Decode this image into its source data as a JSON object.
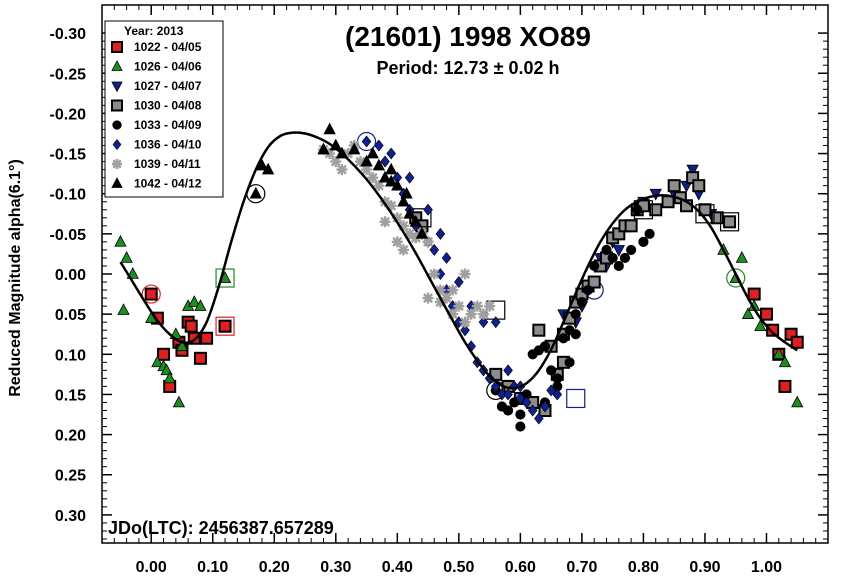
{
  "chart_data": {
    "type": "scatter",
    "title": "(21601) 1998 XO89",
    "subtitle": "Period: 12.73 ± 0.02 h",
    "annotation": "JDo(LTC): 2456387.657289",
    "ylabel": "Reduced Magnitude alpha(6.1°)",
    "xlabel": "",
    "xlim": [
      -0.08,
      1.1
    ],
    "ylim": [
      0.335,
      -0.335
    ],
    "y_inverted": true,
    "x_ticks": [
      "0.00",
      "0.10",
      "0.20",
      "0.30",
      "0.40",
      "0.50",
      "0.60",
      "0.70",
      "0.80",
      "0.90",
      "1.00"
    ],
    "x_tick_values": [
      0,
      0.1,
      0.2,
      0.3,
      0.4,
      0.5,
      0.6,
      0.7,
      0.8,
      0.9,
      1.0
    ],
    "y_ticks": [
      "-0.30",
      "-0.25",
      "-0.20",
      "-0.15",
      "-0.10",
      "-0.05",
      "0.00",
      "0.05",
      "0.10",
      "0.15",
      "0.20",
      "0.25",
      "0.30"
    ],
    "y_tick_values": [
      -0.3,
      -0.25,
      -0.2,
      -0.15,
      -0.1,
      -0.05,
      0.0,
      0.05,
      0.1,
      0.15,
      0.2,
      0.25,
      0.3
    ],
    "legend_title": "Year: 2013",
    "legend_position": "top-left",
    "series": [
      {
        "name": "1022 - 04/05",
        "marker": "square",
        "fill": "#e02020",
        "stroke": "#000000",
        "points": [
          [
            0.0,
            0.025
          ],
          [
            0.01,
            0.055
          ],
          [
            0.02,
            0.1
          ],
          [
            0.03,
            0.14
          ],
          [
            0.045,
            0.085
          ],
          [
            0.05,
            0.095
          ],
          [
            0.06,
            0.06
          ],
          [
            0.065,
            0.065
          ],
          [
            0.07,
            0.08
          ],
          [
            0.08,
            0.105
          ],
          [
            0.09,
            0.08
          ],
          [
            0.12,
            0.065
          ],
          [
            0.98,
            0.025
          ],
          [
            1.0,
            0.05
          ],
          [
            1.01,
            0.07
          ],
          [
            1.02,
            0.1
          ],
          [
            1.03,
            0.14
          ],
          [
            1.04,
            0.075
          ],
          [
            1.05,
            0.085
          ]
        ],
        "circled": [
          [
            0.0,
            0.025
          ]
        ],
        "boxed": [
          [
            0.12,
            0.065
          ]
        ]
      },
      {
        "name": "1026 - 04/06",
        "marker": "triangle-up",
        "fill": "#1e8c1e",
        "stroke": "#000000",
        "points": [
          [
            -0.05,
            -0.04
          ],
          [
            -0.04,
            -0.02
          ],
          [
            -0.03,
            0.0
          ],
          [
            -0.045,
            0.045
          ],
          [
            0.0,
            0.055
          ],
          [
            0.01,
            0.11
          ],
          [
            0.02,
            0.115
          ],
          [
            0.025,
            0.12
          ],
          [
            0.03,
            0.13
          ],
          [
            0.04,
            0.075
          ],
          [
            0.045,
            0.16
          ],
          [
            0.05,
            0.09
          ],
          [
            0.06,
            0.04
          ],
          [
            0.07,
            0.035
          ],
          [
            0.08,
            0.04
          ],
          [
            0.12,
            0.005
          ],
          [
            0.93,
            -0.03
          ],
          [
            0.95,
            0.005
          ],
          [
            0.96,
            -0.02
          ],
          [
            0.97,
            0.05
          ],
          [
            0.98,
            0.04
          ],
          [
            0.99,
            0.065
          ],
          [
            1.02,
            0.1
          ],
          [
            1.03,
            0.11
          ],
          [
            1.05,
            0.16
          ]
        ],
        "circled": [
          [
            0.95,
            0.005
          ]
        ],
        "boxed": [
          [
            0.12,
            0.005
          ]
        ]
      },
      {
        "name": "1027 - 04/07",
        "marker": "triangle-down",
        "fill": "#10208c",
        "stroke": "#000000",
        "points": [
          [
            0.69,
            0.06
          ],
          [
            0.7,
            0.04
          ],
          [
            0.71,
            0.02
          ],
          [
            0.72,
            0.01
          ],
          [
            0.73,
            -0.02
          ],
          [
            0.75,
            -0.04
          ],
          [
            0.77,
            -0.06
          ],
          [
            0.8,
            -0.09
          ],
          [
            0.82,
            -0.1
          ],
          [
            0.85,
            -0.1
          ],
          [
            0.87,
            -0.11
          ],
          [
            0.88,
            -0.13
          ],
          [
            0.89,
            -0.1
          ],
          [
            0.9,
            -0.08
          ],
          [
            0.91,
            -0.075
          ],
          [
            0.67,
            0.05
          ],
          [
            0.74,
            -0.01
          ],
          [
            0.76,
            -0.03
          ]
        ],
        "circled": [
          [
            0.72,
            0.02
          ]
        ],
        "boxed": []
      },
      {
        "name": "1030 - 04/08",
        "marker": "square",
        "fill": "#8c8c8c",
        "stroke": "#000000",
        "points": [
          [
            0.56,
            0.125
          ],
          [
            0.58,
            0.14
          ],
          [
            0.6,
            0.155
          ],
          [
            0.62,
            0.16
          ],
          [
            0.64,
            0.17
          ],
          [
            0.66,
            0.125
          ],
          [
            0.67,
            0.11
          ],
          [
            0.68,
            0.055
          ],
          [
            0.69,
            0.035
          ],
          [
            0.7,
            0.025
          ],
          [
            0.71,
            0.015
          ],
          [
            0.72,
            0.01
          ],
          [
            0.73,
            -0.01
          ],
          [
            0.74,
            -0.02
          ],
          [
            0.75,
            -0.045
          ],
          [
            0.76,
            -0.05
          ],
          [
            0.77,
            -0.06
          ],
          [
            0.78,
            -0.06
          ],
          [
            0.79,
            -0.08
          ],
          [
            0.8,
            -0.085
          ],
          [
            0.82,
            -0.08
          ],
          [
            0.84,
            -0.09
          ],
          [
            0.85,
            -0.11
          ],
          [
            0.86,
            -0.095
          ],
          [
            0.87,
            -0.085
          ],
          [
            0.88,
            -0.12
          ],
          [
            0.89,
            -0.11
          ],
          [
            0.9,
            -0.08
          ],
          [
            0.92,
            -0.07
          ],
          [
            0.94,
            -0.065
          ],
          [
            0.43,
            -0.07
          ],
          [
            0.44,
            -0.06
          ],
          [
            0.63,
            0.07
          ],
          [
            0.65,
            0.09
          ],
          [
            0.67,
            0.075
          ]
        ],
        "circled": [],
        "boxed": [
          [
            0.56,
            0.045
          ],
          [
            0.8,
            -0.08
          ],
          [
            0.9,
            -0.075
          ],
          [
            0.94,
            -0.065
          ],
          [
            0.44,
            -0.07
          ]
        ]
      },
      {
        "name": "1033 - 04/09",
        "marker": "circle",
        "fill": "#000000",
        "stroke": "#000000",
        "points": [
          [
            0.56,
            0.145
          ],
          [
            0.57,
            0.165
          ],
          [
            0.58,
            0.17
          ],
          [
            0.59,
            0.16
          ],
          [
            0.6,
            0.175
          ],
          [
            0.61,
            0.15
          ],
          [
            0.62,
            0.1
          ],
          [
            0.63,
            0.095
          ],
          [
            0.64,
            0.09
          ],
          [
            0.65,
            0.12
          ],
          [
            0.66,
            0.13
          ],
          [
            0.67,
            0.08
          ],
          [
            0.68,
            0.07
          ],
          [
            0.69,
            0.05
          ],
          [
            0.7,
            0.035
          ],
          [
            0.71,
            0.02
          ],
          [
            0.72,
            -0.01
          ],
          [
            0.74,
            -0.03
          ],
          [
            0.75,
            -0.02
          ],
          [
            0.76,
            -0.01
          ],
          [
            0.77,
            -0.02
          ],
          [
            0.78,
            -0.03
          ],
          [
            0.79,
            -0.08
          ],
          [
            0.8,
            -0.04
          ],
          [
            0.81,
            -0.05
          ],
          [
            0.6,
            0.19
          ],
          [
            0.64,
            0.16
          ],
          [
            0.66,
            0.14
          ],
          [
            0.68,
            0.11
          ],
          [
            0.69,
            0.075
          ]
        ],
        "circled": [
          [
            0.56,
            0.145
          ]
        ],
        "boxed": []
      },
      {
        "name": "1036 - 04/10",
        "marker": "diamond",
        "fill": "#10208c",
        "stroke": "#000000",
        "points": [
          [
            0.35,
            -0.165
          ],
          [
            0.37,
            -0.16
          ],
          [
            0.38,
            -0.14
          ],
          [
            0.4,
            -0.12
          ],
          [
            0.41,
            -0.1
          ],
          [
            0.42,
            -0.08
          ],
          [
            0.43,
            -0.06
          ],
          [
            0.44,
            -0.05
          ],
          [
            0.45,
            -0.04
          ],
          [
            0.46,
            -0.03
          ],
          [
            0.47,
            0.0
          ],
          [
            0.48,
            0.02
          ],
          [
            0.49,
            0.04
          ],
          [
            0.5,
            0.06
          ],
          [
            0.51,
            0.07
          ],
          [
            0.52,
            0.09
          ],
          [
            0.53,
            0.11
          ],
          [
            0.54,
            0.12
          ],
          [
            0.55,
            0.13
          ],
          [
            0.56,
            0.14
          ],
          [
            0.57,
            0.15
          ],
          [
            0.58,
            0.15
          ],
          [
            0.59,
            0.14
          ],
          [
            0.6,
            0.155
          ],
          [
            0.61,
            0.16
          ],
          [
            0.62,
            0.17
          ],
          [
            0.63,
            0.18
          ],
          [
            0.64,
            0.165
          ],
          [
            0.65,
            0.145
          ],
          [
            0.66,
            0.15
          ],
          [
            0.45,
            -0.08
          ],
          [
            0.47,
            -0.05
          ],
          [
            0.39,
            -0.15
          ],
          [
            0.42,
            -0.12
          ],
          [
            0.48,
            -0.02
          ],
          [
            0.5,
            0.01
          ],
          [
            0.52,
            0.04
          ],
          [
            0.54,
            0.06
          ],
          [
            0.56,
            0.06
          ],
          [
            0.58,
            0.12
          ],
          [
            0.6,
            0.14
          ]
        ],
        "circled": [
          [
            0.35,
            -0.165
          ]
        ],
        "boxed": [
          [
            0.69,
            0.155
          ]
        ]
      },
      {
        "name": "1039 - 04/11",
        "marker": "asterisk",
        "fill": "#a0a0a0",
        "stroke": "#a0a0a0",
        "points": [
          [
            0.28,
            -0.155
          ],
          [
            0.29,
            -0.15
          ],
          [
            0.3,
            -0.14
          ],
          [
            0.31,
            -0.13
          ],
          [
            0.32,
            -0.15
          ],
          [
            0.33,
            -0.16
          ],
          [
            0.34,
            -0.14
          ],
          [
            0.35,
            -0.13
          ],
          [
            0.36,
            -0.12
          ],
          [
            0.37,
            -0.11
          ],
          [
            0.38,
            -0.09
          ],
          [
            0.39,
            -0.085
          ],
          [
            0.4,
            -0.07
          ],
          [
            0.41,
            -0.06
          ],
          [
            0.42,
            -0.05
          ],
          [
            0.43,
            -0.045
          ],
          [
            0.44,
            -0.05
          ],
          [
            0.45,
            -0.04
          ],
          [
            0.46,
            0.0
          ],
          [
            0.47,
            0.02
          ],
          [
            0.48,
            0.03
          ],
          [
            0.49,
            0.02
          ],
          [
            0.5,
            0.04
          ],
          [
            0.51,
            0.06
          ],
          [
            0.52,
            0.05
          ],
          [
            0.53,
            0.04
          ],
          [
            0.54,
            0.05
          ],
          [
            0.55,
            0.04
          ],
          [
            0.38,
            -0.065
          ],
          [
            0.4,
            -0.04
          ],
          [
            0.41,
            -0.03
          ],
          [
            0.45,
            0.03
          ],
          [
            0.47,
            0.035
          ],
          [
            0.49,
            0.05
          ],
          [
            0.51,
            0.0
          ]
        ],
        "circled": [],
        "boxed": []
      },
      {
        "name": "1042 - 04/12",
        "marker": "triangle-up",
        "fill": "#000000",
        "stroke": "#000000",
        "points": [
          [
            0.17,
            -0.1
          ],
          [
            0.18,
            -0.135
          ],
          [
            0.19,
            -0.13
          ],
          [
            0.28,
            -0.155
          ],
          [
            0.29,
            -0.18
          ],
          [
            0.3,
            -0.16
          ],
          [
            0.31,
            -0.15
          ],
          [
            0.33,
            -0.155
          ],
          [
            0.35,
            -0.14
          ],
          [
            0.36,
            -0.15
          ],
          [
            0.37,
            -0.135
          ],
          [
            0.38,
            -0.12
          ],
          [
            0.39,
            -0.115
          ],
          [
            0.4,
            -0.11
          ],
          [
            0.41,
            -0.09
          ],
          [
            0.42,
            -0.075
          ],
          [
            0.43,
            -0.065
          ],
          [
            0.44,
            -0.05
          ],
          [
            0.39,
            -0.13
          ],
          [
            0.415,
            -0.1
          ]
        ],
        "circled": [
          [
            0.17,
            -0.1
          ]
        ],
        "boxed": []
      }
    ],
    "fit_curve": {
      "x": [
        -0.05,
        -0.03,
        -0.01,
        0.01,
        0.03,
        0.05,
        0.07,
        0.09,
        0.11,
        0.13,
        0.15,
        0.17,
        0.19,
        0.21,
        0.23,
        0.25,
        0.27,
        0.29,
        0.31,
        0.33,
        0.35,
        0.37,
        0.39,
        0.41,
        0.43,
        0.45,
        0.47,
        0.49,
        0.51,
        0.53,
        0.55,
        0.57,
        0.59,
        0.61,
        0.63,
        0.65,
        0.67,
        0.69,
        0.71,
        0.73,
        0.75,
        0.77,
        0.79,
        0.81,
        0.83,
        0.85,
        0.87,
        0.89,
        0.91,
        0.93,
        0.95,
        0.97,
        0.99,
        1.01,
        1.03,
        1.05
      ],
      "y": [
        -0.015,
        0.01,
        0.035,
        0.058,
        0.075,
        0.085,
        0.082,
        0.06,
        0.015,
        -0.04,
        -0.09,
        -0.13,
        -0.158,
        -0.172,
        -0.176,
        -0.175,
        -0.17,
        -0.162,
        -0.15,
        -0.135,
        -0.118,
        -0.098,
        -0.076,
        -0.052,
        -0.026,
        0.002,
        0.03,
        0.058,
        0.085,
        0.108,
        0.127,
        0.139,
        0.142,
        0.136,
        0.12,
        0.094,
        0.06,
        0.024,
        -0.01,
        -0.04,
        -0.063,
        -0.08,
        -0.09,
        -0.096,
        -0.098,
        -0.096,
        -0.09,
        -0.078,
        -0.058,
        -0.03,
        0.0,
        0.03,
        0.055,
        0.073,
        0.085,
        0.095
      ]
    }
  }
}
